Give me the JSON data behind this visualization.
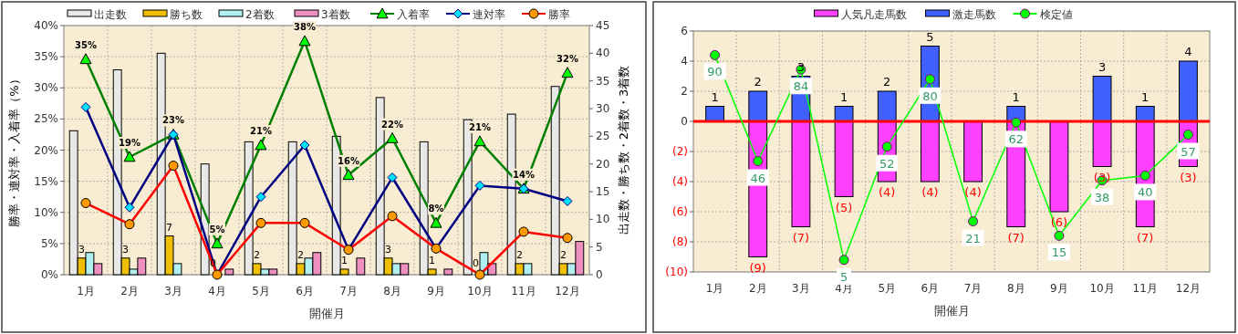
{
  "chart_data": [
    {
      "type": "bar",
      "categories": [
        "1月",
        "2月",
        "3月",
        "4月",
        "5月",
        "6月",
        "7月",
        "8月",
        "9月",
        "10月",
        "11月",
        "12月"
      ],
      "xlabel": "開催月",
      "ylabel": "勝率・連対率・入着率（%）",
      "y2label": "出走数・勝ち数・2着数・3着数",
      "ylim": [
        0,
        40
      ],
      "yticks": [
        {
          "value": 0,
          "label": "0%"
        },
        {
          "value": 5,
          "label": "5%"
        },
        {
          "value": 10,
          "label": "10%"
        },
        {
          "value": 15,
          "label": "15%"
        },
        {
          "value": 20,
          "label": "20%"
        },
        {
          "value": 25,
          "label": "25%"
        },
        {
          "value": 30,
          "label": "30%"
        },
        {
          "value": 35,
          "label": "35%"
        },
        {
          "value": 40,
          "label": "40%"
        }
      ],
      "y2lim": [
        0,
        45
      ],
      "y2ticks": [
        0,
        5,
        10,
        15,
        20,
        25,
        30,
        35,
        40,
        45
      ],
      "grid": true,
      "legend": "top",
      "series": [
        {
          "name": "出走数",
          "axis": "y2",
          "color": "#e8e8e8",
          "values": [
            26,
            37,
            40,
            20,
            24,
            24,
            25,
            32,
            24,
            28,
            29,
            34
          ]
        },
        {
          "name": "勝ち数",
          "axis": "y2",
          "color": "#f0c000",
          "values": [
            3,
            3,
            7,
            0,
            2,
            2,
            1,
            3,
            1,
            0,
            2,
            2
          ],
          "value_labels": [
            "3",
            "3",
            "7",
            "0",
            "2",
            "2",
            "1",
            "3",
            "1",
            "0",
            "2",
            "2"
          ]
        },
        {
          "name": "2着数",
          "axis": "y2",
          "color": "#b0f0f0",
          "values": [
            4,
            1,
            2,
            0,
            1,
            3,
            0,
            2,
            0,
            4,
            2,
            2
          ]
        },
        {
          "name": "3着数",
          "axis": "y2",
          "color": "#f090c0",
          "values": [
            2,
            3,
            0,
            1,
            1,
            4,
            3,
            2,
            1,
            2,
            0,
            6
          ]
        },
        {
          "name": "入着率",
          "type": "line",
          "color": "#008000",
          "marker": "triangle",
          "values": [
            34.6,
            18.9,
            22.5,
            5.0,
            20.8,
            37.5,
            16.0,
            21.9,
            8.3,
            21.4,
            13.8,
            32.4
          ],
          "value_labels": [
            "35%",
            "19%",
            "23%",
            "5%",
            "21%",
            "38%",
            "16%",
            "22%",
            "8%",
            "21%",
            "14%",
            "32%"
          ]
        },
        {
          "name": "連対率",
          "type": "line",
          "color": "#000080",
          "marker": "diamond",
          "values": [
            26.9,
            10.8,
            22.5,
            0,
            12.5,
            20.8,
            4.0,
            15.6,
            4.2,
            14.3,
            13.8,
            11.8
          ]
        },
        {
          "name": "勝率",
          "type": "line",
          "color": "#ff0000",
          "marker": "circle",
          "values": [
            11.5,
            8.1,
            17.5,
            0,
            8.3,
            8.3,
            4.0,
            9.4,
            4.2,
            0,
            6.9,
            5.9
          ]
        }
      ]
    },
    {
      "type": "bar",
      "stacked": true,
      "categories": [
        "1月",
        "2月",
        "3月",
        "4月",
        "5月",
        "6月",
        "7月",
        "8月",
        "9月",
        "10月",
        "11月",
        "12月"
      ],
      "xlabel": "開催月",
      "ylim": [
        -10,
        6
      ],
      "yticks": [
        {
          "value": -10,
          "label": "(10)"
        },
        {
          "value": -8,
          "label": "(8)"
        },
        {
          "value": -6,
          "label": "(6)"
        },
        {
          "value": -4,
          "label": "(4)"
        },
        {
          "value": -2,
          "label": "(2)"
        },
        0,
        2,
        4,
        6
      ],
      "y2lim": [
        0,
        100
      ],
      "grid": true,
      "legend": "top",
      "ref_lines": [
        {
          "axis": "y",
          "value": 0,
          "color": "#ff0000"
        }
      ],
      "series": [
        {
          "name": "人気凡走馬数",
          "color": "#ff40ff",
          "values": [
            null,
            -9,
            -7,
            -5,
            -4,
            -4,
            -4,
            -7,
            -6,
            -3,
            -7,
            -3
          ],
          "value_labels": [
            null,
            "(9)",
            "(7)",
            "(5)",
            "(4)",
            "(4)",
            "(4)",
            "(7)",
            "(6)",
            "(3)",
            "(7)",
            "(3)"
          ]
        },
        {
          "name": "激走馬数",
          "color": "#4060ff",
          "values": [
            1,
            2,
            3,
            1,
            2,
            5,
            null,
            1,
            null,
            3,
            1,
            4
          ],
          "value_labels": [
            "1",
            "2",
            "3",
            "1",
            "2",
            "5",
            null,
            "1",
            null,
            "3",
            "1",
            "4"
          ]
        },
        {
          "name": "検定値",
          "type": "line",
          "axis": "y2",
          "color": "#00ff00",
          "marker": "circle",
          "values": [
            90,
            46,
            84,
            5,
            52,
            80,
            21,
            62,
            15,
            38,
            40,
            57
          ],
          "value_labels": [
            "90",
            "46",
            "84",
            "5",
            "52",
            "80",
            "21",
            "62",
            "15",
            "38",
            "40",
            "57"
          ]
        }
      ]
    }
  ]
}
